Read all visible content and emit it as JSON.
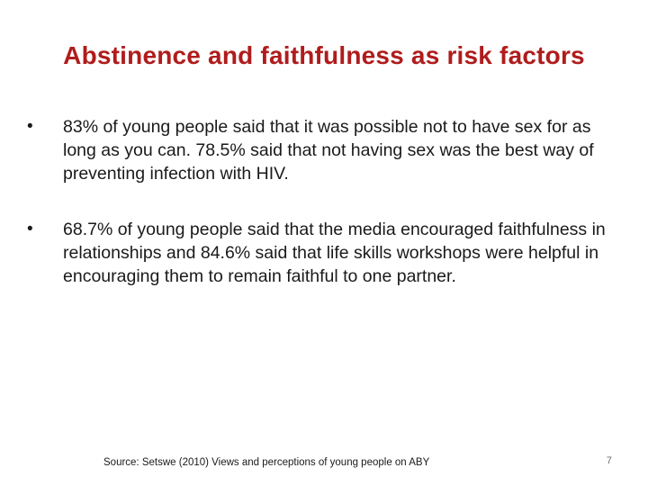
{
  "slide": {
    "title": "Abstinence and faithfulness as risk factors",
    "bullets": [
      {
        "marker": "•",
        "text": "83% of young people said that it was possible not to have sex for as long as you can. 78.5% said that not having sex was the best way of preventing infection with HIV."
      },
      {
        "marker": "•",
        "text": "68.7% of young people said that the media encouraged faithfulness in relationships and 84.6% said that life skills workshops were helpful in encouraging them to remain faithful to one partner."
      }
    ],
    "source": "Source: Setswe (2010) Views and perceptions of young people on ABY",
    "page_number": "7",
    "colors": {
      "title": "#b01c1c",
      "text": "#1a1a1a",
      "background": "#ffffff"
    }
  }
}
